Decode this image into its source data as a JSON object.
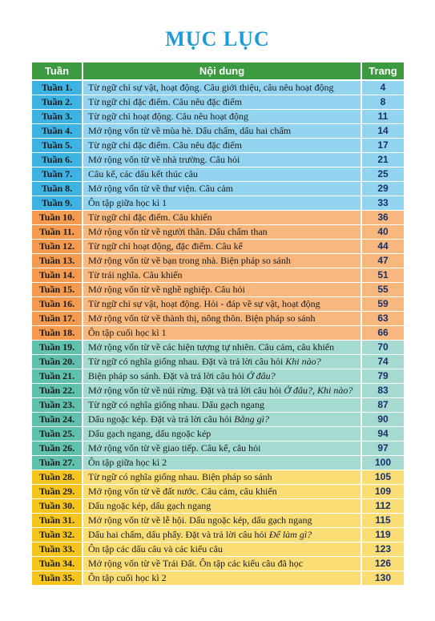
{
  "title": "MỤC LỤC",
  "header": {
    "week": "Tuần",
    "content": "Nội dung",
    "page": "Trang"
  },
  "sections": [
    {
      "rows": [
        {
          "week": "Tuần 1.",
          "content": "Từ ngữ chỉ sự vật, hoạt động. Câu giới thiệu, câu nêu hoạt động",
          "page": 4
        },
        {
          "week": "Tuần 2.",
          "content": "Từ ngữ chỉ đặc điểm. Câu nêu đặc điểm",
          "page": 8
        },
        {
          "week": "Tuần 3.",
          "content": "Từ ngữ chỉ hoạt động. Câu nêu hoạt động",
          "page": 11
        },
        {
          "week": "Tuần 4.",
          "content": "Mở rộng vốn từ về mùa hè. Dấu chấm, dấu hai chấm",
          "page": 14
        },
        {
          "week": "Tuần 5.",
          "content": "Từ ngữ chỉ đặc điểm. Câu nêu đặc điểm",
          "page": 17
        },
        {
          "week": "Tuần 6.",
          "content": "Mở rộng vốn từ về nhà trường. Câu hỏi",
          "page": 21
        },
        {
          "week": "Tuần 7.",
          "content": "Câu kể, các dấu kết thúc câu",
          "page": 25
        },
        {
          "week": "Tuần 8.",
          "content": "Mở rộng vốn từ về thư viện. Câu cảm",
          "page": 29
        },
        {
          "week": "Tuần 9.",
          "content": "Ôn tập giữa học kì 1",
          "page": 33
        }
      ]
    },
    {
      "rows": [
        {
          "week": "Tuần 10.",
          "content": "Từ ngữ chỉ đặc điểm. Câu khiến",
          "page": 36
        },
        {
          "week": "Tuần 11.",
          "content": "Mở rộng vốn từ về người thân. Dấu chấm than",
          "page": 40
        },
        {
          "week": "Tuần 12.",
          "content": "Từ ngữ chỉ hoạt động, đặc điểm. Câu kể",
          "page": 44
        },
        {
          "week": "Tuần 13.",
          "content": "Mở rộng vốn từ về bạn trong nhà. Biện pháp so sánh",
          "page": 47
        },
        {
          "week": "Tuần 14.",
          "content": "Từ trái nghĩa. Câu khiến",
          "page": 51
        },
        {
          "week": "Tuần 15.",
          "content": "Mở rộng vốn từ về nghề nghiệp. Câu hỏi",
          "page": 55
        },
        {
          "week": "Tuần 16.",
          "content": "Từ ngữ chỉ sự vật, hoạt động. Hỏi - đáp về sự vật, hoạt động",
          "page": 59
        },
        {
          "week": "Tuần 17.",
          "content": "Mở rộng vốn từ về thành thị, nông thôn. Biện pháp so sánh",
          "page": 63
        },
        {
          "week": "Tuần 18.",
          "content": "Ôn tập cuối học kì 1",
          "page": 66
        }
      ]
    },
    {
      "rows": [
        {
          "week": "Tuần 19.",
          "content": "Mở rộng vốn từ về các hiện tượng tự nhiên. Câu cảm, câu khiến",
          "page": 70
        },
        {
          "week": "Tuần 20.",
          "content": "Từ ngữ có nghĩa giống nhau. Đặt và trả lời câu hỏi ",
          "italic": "Khi nào?",
          "page": 74
        },
        {
          "week": "Tuần 21.",
          "content": "Biện pháp so sánh. Đặt và trả lời câu hỏi ",
          "italic": "Ở đâu?",
          "page": 79
        },
        {
          "week": "Tuần 22.",
          "content": "Mở rộng vốn từ về núi rừng. Đặt và trả lời câu hỏi ",
          "italic": "Ở đâu?, Khi nào?",
          "page": 83
        },
        {
          "week": "Tuần 23.",
          "content": "Từ ngữ có nghĩa giống nhau. Dấu gạch ngang",
          "page": 87
        },
        {
          "week": "Tuần 24.",
          "content": "Dấu ngoặc kép. Đặt và trả lời câu hỏi ",
          "italic": "Bằng gì?",
          "page": 90
        },
        {
          "week": "Tuần 25.",
          "content": "Dấu gạch ngang, dấu ngoặc kép",
          "page": 94
        },
        {
          "week": "Tuần 26.",
          "content": "Mở rộng vốn từ về giao tiếp. Câu kể, câu hỏi",
          "page": 97
        },
        {
          "week": "Tuần 27.",
          "content": "Ôn tập giữa học kì 2",
          "page": 100
        }
      ]
    },
    {
      "rows": [
        {
          "week": "Tuần 28.",
          "content": "Từ ngữ có nghĩa giống nhau. Biện pháp so sánh",
          "page": 105
        },
        {
          "week": "Tuần 29.",
          "content": "Mở rộng vốn từ về đất nước. Câu cảm, câu khiến",
          "page": 109
        },
        {
          "week": "Tuần 30.",
          "content": "Dấu ngoặc kép, dấu gạch ngang",
          "page": 112
        },
        {
          "week": "Tuần 31.",
          "content": "Mở rộng vốn từ về lễ hội. Dấu ngoặc kép, dấu gạch ngang",
          "page": 115
        },
        {
          "week": "Tuần 32.",
          "content": "Dấu hai chấm, dấu phẩy. Đặt và trả lời câu hỏi ",
          "italic": "Để làm gì?",
          "page": 119
        },
        {
          "week": "Tuần 33.",
          "content": "Ôn tập các dấu câu và các kiểu câu",
          "page": 123
        },
        {
          "week": "Tuần 34.",
          "content": "Mở rộng vốn từ về Trái Đất. Ôn tập các kiểu câu đã học",
          "page": 126
        },
        {
          "week": "Tuần 35.",
          "content": "Ôn tập cuối học kì 2",
          "page": 130
        }
      ]
    }
  ]
}
